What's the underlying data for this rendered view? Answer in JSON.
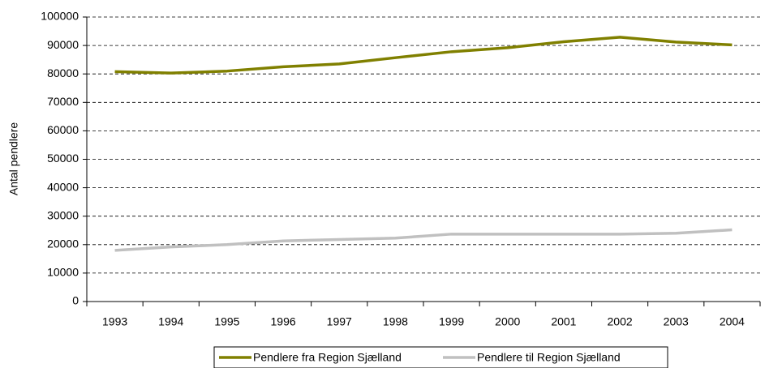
{
  "chart_data": {
    "type": "line",
    "y_label": "Antal pendlere",
    "categories": [
      "1993",
      "1994",
      "1995",
      "1996",
      "1997",
      "1998",
      "1999",
      "2000",
      "2001",
      "2002",
      "2003",
      "2004"
    ],
    "series": [
      {
        "name": "Pendlere fra Region Sjælland",
        "color": "#808000",
        "values": [
          80800,
          80300,
          81000,
          82500,
          83500,
          85700,
          87800,
          89200,
          91300,
          92900,
          91200,
          90200
        ]
      },
      {
        "name": "Pendlere til Region Sjælland",
        "color": "#c0c0c0",
        "values": [
          18000,
          19200,
          20000,
          21300,
          21800,
          22300,
          23700,
          23700,
          23700,
          23700,
          24000,
          25200
        ]
      }
    ],
    "ylim": [
      0,
      100000
    ],
    "yticks": [
      0,
      10000,
      20000,
      30000,
      40000,
      50000,
      60000,
      70000,
      80000,
      90000,
      100000
    ],
    "grid": true,
    "legend": "bottom"
  }
}
